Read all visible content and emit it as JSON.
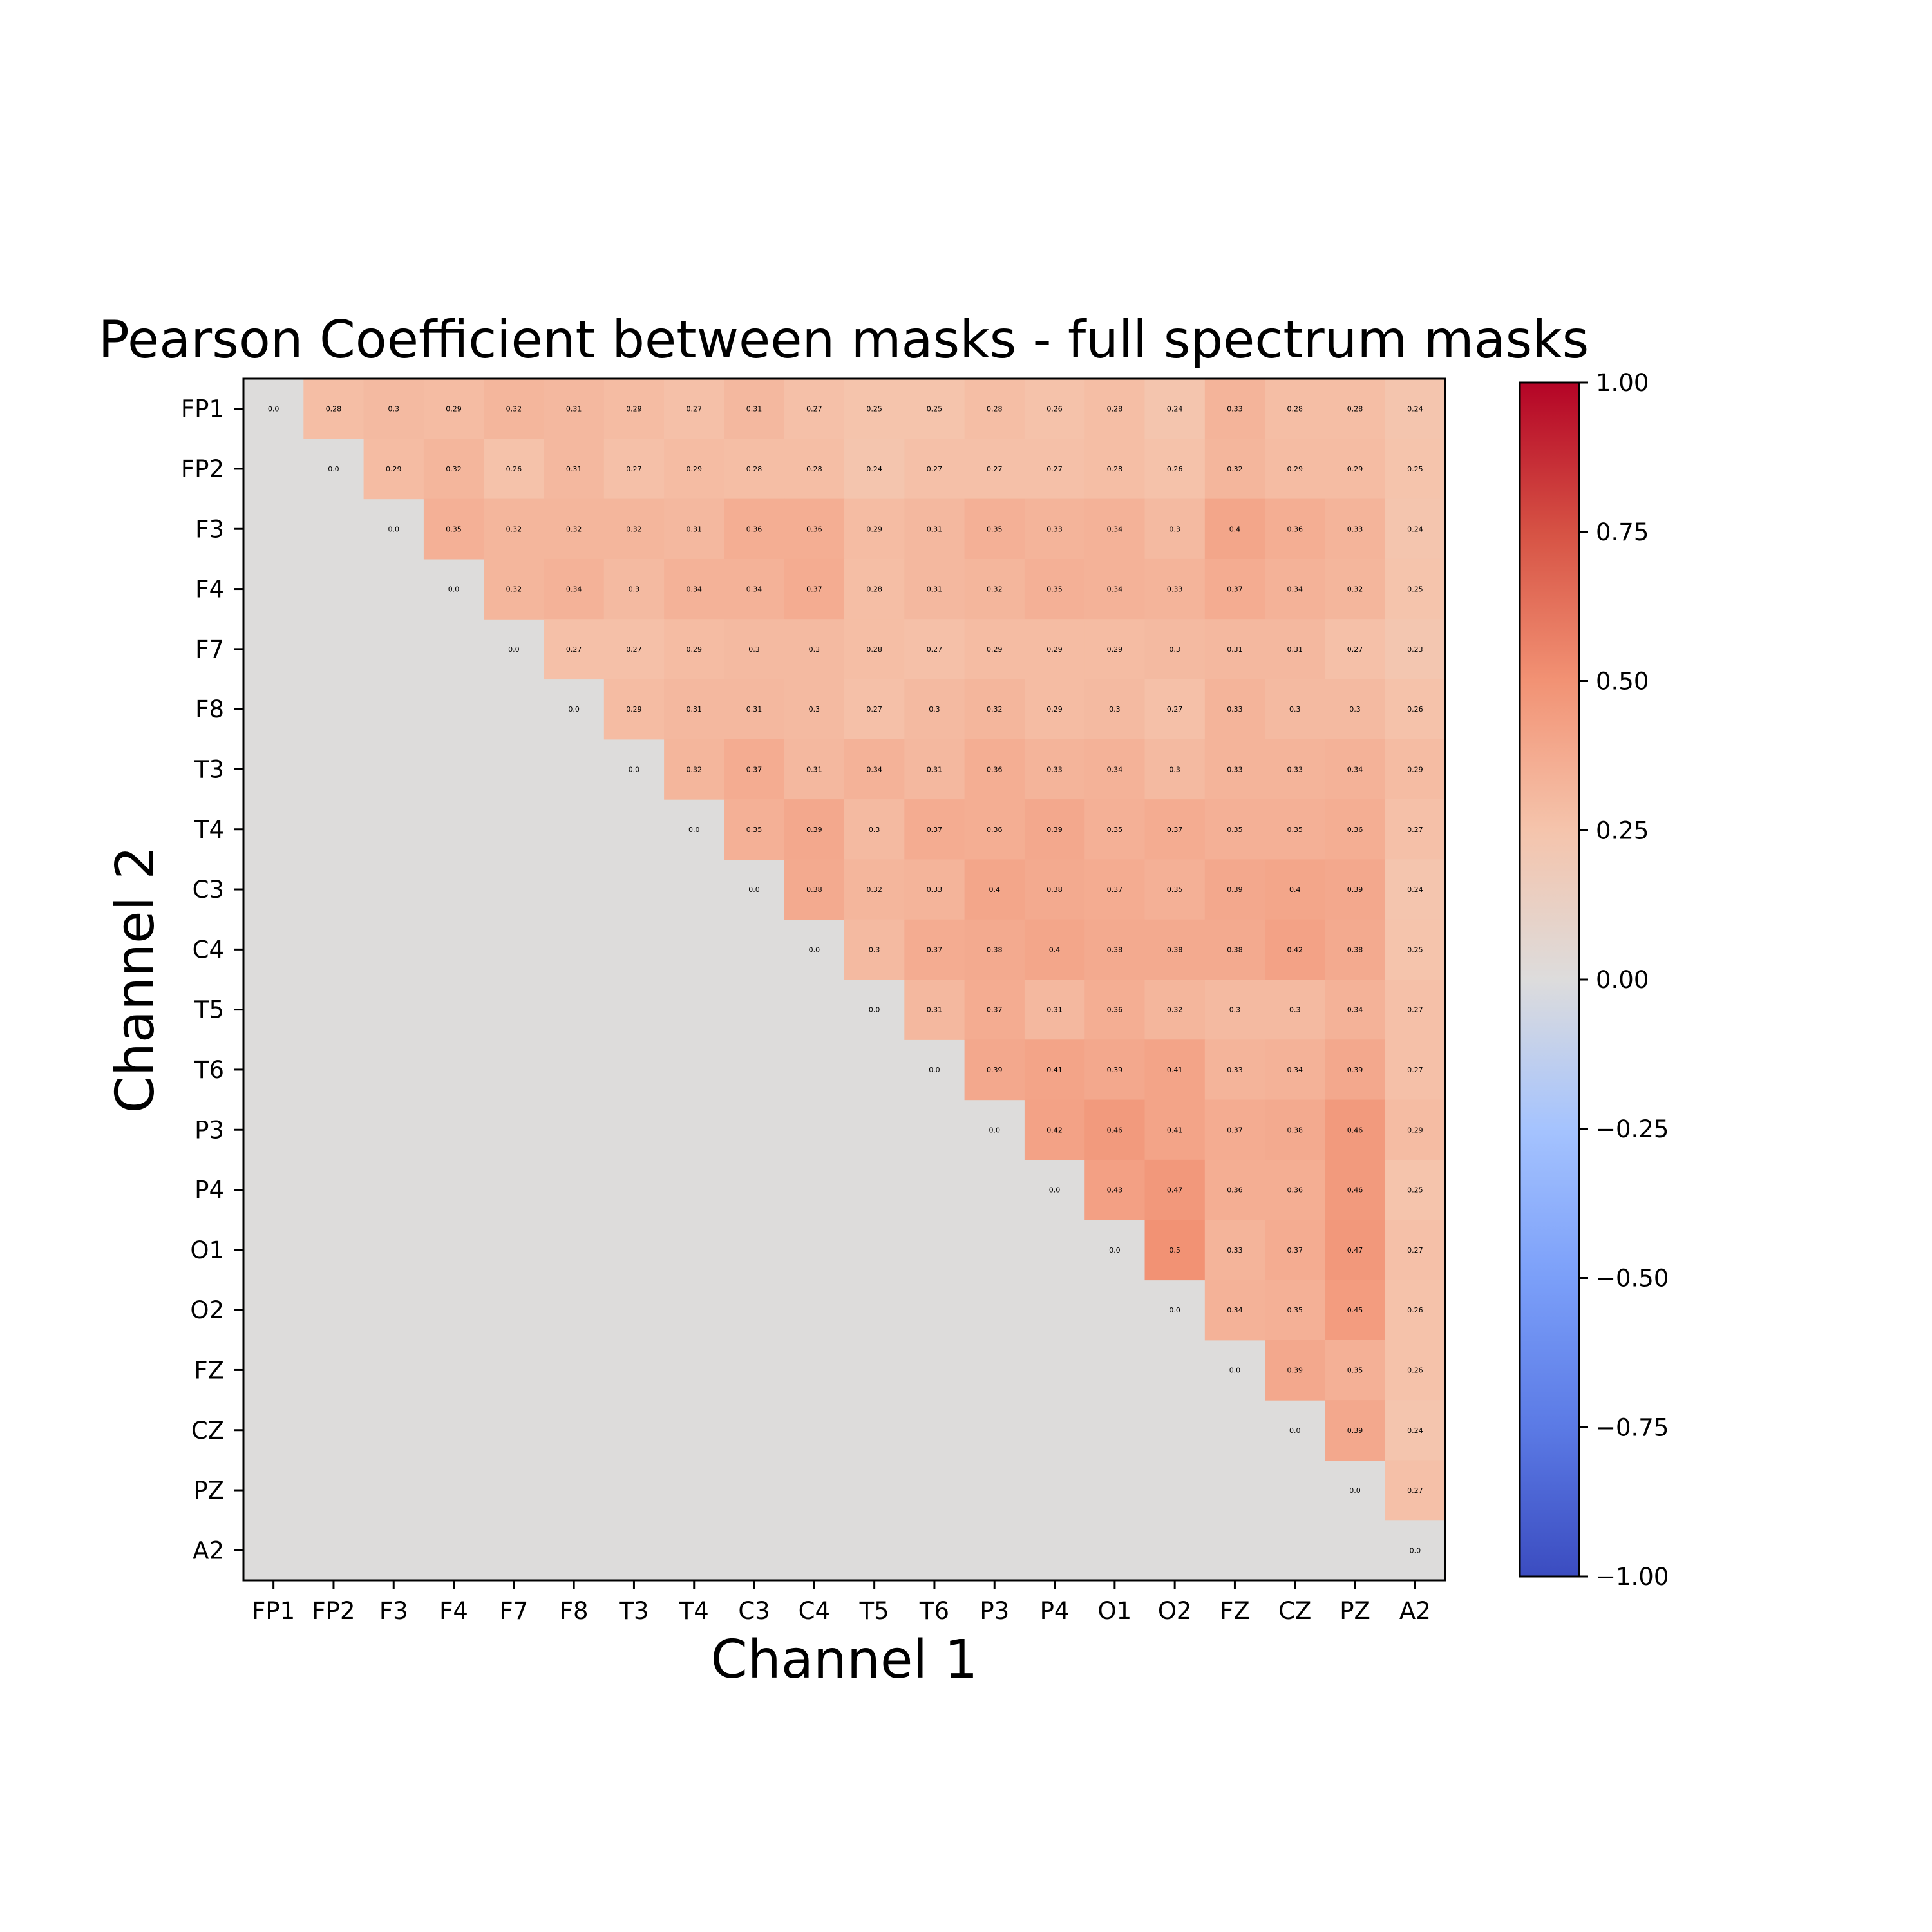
{
  "chart_data": {
    "type": "heatmap",
    "title": "Pearson Coefficient between masks - full spectrum masks",
    "xlabel": "Channel 1",
    "ylabel": "Channel 2",
    "x_categories": [
      "FP1",
      "FP2",
      "F3",
      "F4",
      "F7",
      "F8",
      "T3",
      "T4",
      "C3",
      "C4",
      "T5",
      "T6",
      "P3",
      "P4",
      "O1",
      "O2",
      "FZ",
      "CZ",
      "PZ",
      "A2"
    ],
    "y_categories": [
      "FP1",
      "FP2",
      "F3",
      "F4",
      "F7",
      "F8",
      "T3",
      "T4",
      "C3",
      "C4",
      "T5",
      "T6",
      "P3",
      "P4",
      "O1",
      "O2",
      "FZ",
      "CZ",
      "PZ",
      "A2"
    ],
    "colormap": "coolwarm",
    "vmin": -1.0,
    "vmax": 1.0,
    "masked_color": "#dddcdb",
    "mask": "lower triangle (below diagonal) not shown",
    "colorbar_ticks": [
      "1.00",
      "0.75",
      "0.50",
      "0.25",
      "0.00",
      "−0.25",
      "−0.50",
      "−0.75",
      "−1.00"
    ],
    "values": [
      [
        0.0,
        0.28,
        0.3,
        0.29,
        0.32,
        0.31,
        0.29,
        0.27,
        0.31,
        0.27,
        0.25,
        0.25,
        0.28,
        0.26,
        0.28,
        0.24,
        0.33,
        0.28,
        0.28,
        0.24
      ],
      [
        null,
        0.0,
        0.29,
        0.32,
        0.26,
        0.31,
        0.27,
        0.29,
        0.28,
        0.28,
        0.24,
        0.27,
        0.27,
        0.27,
        0.28,
        0.26,
        0.32,
        0.29,
        0.29,
        0.25
      ],
      [
        null,
        null,
        0.0,
        0.35,
        0.32,
        0.32,
        0.32,
        0.31,
        0.36,
        0.36,
        0.29,
        0.31,
        0.35,
        0.33,
        0.34,
        0.3,
        0.4,
        0.36,
        0.33,
        0.24
      ],
      [
        null,
        null,
        null,
        0.0,
        0.32,
        0.34,
        0.3,
        0.34,
        0.34,
        0.37,
        0.28,
        0.31,
        0.32,
        0.35,
        0.34,
        0.33,
        0.37,
        0.34,
        0.32,
        0.25
      ],
      [
        null,
        null,
        null,
        null,
        0.0,
        0.27,
        0.27,
        0.29,
        0.3,
        0.3,
        0.28,
        0.27,
        0.29,
        0.29,
        0.29,
        0.3,
        0.31,
        0.31,
        0.27,
        0.23
      ],
      [
        null,
        null,
        null,
        null,
        null,
        0.0,
        0.29,
        0.31,
        0.31,
        0.3,
        0.27,
        0.3,
        0.32,
        0.29,
        0.3,
        0.27,
        0.33,
        0.3,
        0.3,
        0.26
      ],
      [
        null,
        null,
        null,
        null,
        null,
        null,
        0.0,
        0.32,
        0.37,
        0.31,
        0.34,
        0.31,
        0.36,
        0.33,
        0.34,
        0.3,
        0.33,
        0.33,
        0.34,
        0.29
      ],
      [
        null,
        null,
        null,
        null,
        null,
        null,
        null,
        0.0,
        0.35,
        0.39,
        0.3,
        0.37,
        0.36,
        0.39,
        0.35,
        0.37,
        0.35,
        0.35,
        0.36,
        0.27
      ],
      [
        null,
        null,
        null,
        null,
        null,
        null,
        null,
        null,
        0.0,
        0.38,
        0.32,
        0.33,
        0.4,
        0.38,
        0.37,
        0.35,
        0.39,
        0.4,
        0.39,
        0.24
      ],
      [
        null,
        null,
        null,
        null,
        null,
        null,
        null,
        null,
        null,
        0.0,
        0.3,
        0.37,
        0.38,
        0.4,
        0.38,
        0.38,
        0.38,
        0.42,
        0.38,
        0.25
      ],
      [
        null,
        null,
        null,
        null,
        null,
        null,
        null,
        null,
        null,
        null,
        0.0,
        0.31,
        0.37,
        0.31,
        0.36,
        0.32,
        0.3,
        0.3,
        0.34,
        0.27
      ],
      [
        null,
        null,
        null,
        null,
        null,
        null,
        null,
        null,
        null,
        null,
        null,
        0.0,
        0.39,
        0.41,
        0.39,
        0.41,
        0.33,
        0.34,
        0.39,
        0.27
      ],
      [
        null,
        null,
        null,
        null,
        null,
        null,
        null,
        null,
        null,
        null,
        null,
        null,
        0.0,
        0.42,
        0.46,
        0.41,
        0.37,
        0.38,
        0.46,
        0.29
      ],
      [
        null,
        null,
        null,
        null,
        null,
        null,
        null,
        null,
        null,
        null,
        null,
        null,
        null,
        0.0,
        0.43,
        0.47,
        0.36,
        0.36,
        0.46,
        0.25
      ],
      [
        null,
        null,
        null,
        null,
        null,
        null,
        null,
        null,
        null,
        null,
        null,
        null,
        null,
        null,
        0.0,
        0.5,
        0.33,
        0.37,
        0.47,
        0.27
      ],
      [
        null,
        null,
        null,
        null,
        null,
        null,
        null,
        null,
        null,
        null,
        null,
        null,
        null,
        null,
        null,
        0.0,
        0.34,
        0.35,
        0.45,
        0.26
      ],
      [
        null,
        null,
        null,
        null,
        null,
        null,
        null,
        null,
        null,
        null,
        null,
        null,
        null,
        null,
        null,
        null,
        0.0,
        0.39,
        0.35,
        0.26
      ],
      [
        null,
        null,
        null,
        null,
        null,
        null,
        null,
        null,
        null,
        null,
        null,
        null,
        null,
        null,
        null,
        null,
        null,
        0.0,
        0.39,
        0.24
      ],
      [
        null,
        null,
        null,
        null,
        null,
        null,
        null,
        null,
        null,
        null,
        null,
        null,
        null,
        null,
        null,
        null,
        null,
        null,
        0.0,
        0.27
      ],
      [
        null,
        null,
        null,
        null,
        null,
        null,
        null,
        null,
        null,
        null,
        null,
        null,
        null,
        null,
        null,
        null,
        null,
        null,
        null,
        0.0
      ]
    ]
  }
}
